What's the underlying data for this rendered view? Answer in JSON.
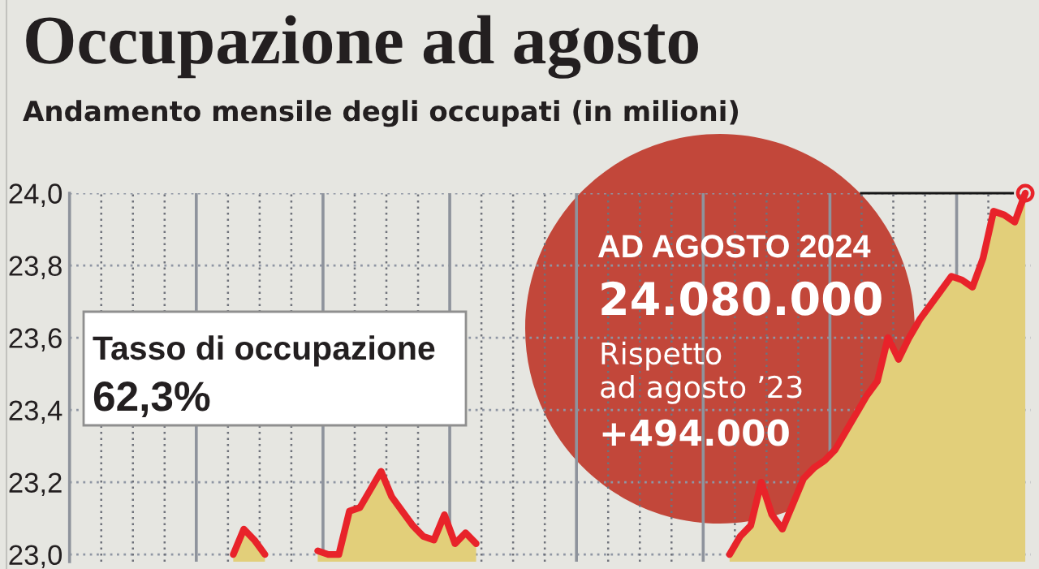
{
  "chart_data": {
    "type": "area",
    "title": "Occupazione ad agosto",
    "subtitle": "Andamento mensile degli occupati (in milioni)",
    "categories": [
      null,
      null,
      null,
      null,
      null,
      null,
      null,
      null,
      null,
      null,
      null,
      null,
      null,
      null,
      null,
      null,
      null,
      null,
      null,
      null,
      null,
      null,
      null,
      null,
      null,
      null,
      null,
      null,
      null,
      null,
      null,
      null,
      null,
      null,
      null,
      null,
      null,
      null,
      null,
      null,
      null,
      null,
      null,
      null,
      null,
      null,
      null,
      null,
      null,
      null,
      null,
      null,
      null,
      null,
      null,
      null,
      null,
      null,
      null,
      null,
      null,
      null,
      null,
      null,
      null,
      null,
      null,
      null,
      null,
      null,
      null,
      null,
      null,
      null,
      null,
      null,
      null,
      null,
      null,
      null,
      null,
      null,
      null,
      null,
      null,
      null,
      null,
      null,
      null,
      null,
      null
    ],
    "series": [
      {
        "color": "#e2cf7a",
        "values": [
          null,
          null,
          null,
          null,
          null,
          null,
          null,
          null,
          null,
          null,
          null,
          null,
          null,
          null,
          null,
          23.0,
          23.07,
          23.04,
          23.0,
          null,
          null,
          null,
          null,
          23.01,
          23.0,
          23.0,
          23.12,
          23.13,
          23.18,
          23.23,
          23.16,
          23.12,
          23.08,
          23.05,
          23.04,
          23.11,
          23.03,
          23.06,
          23.03,
          null,
          null,
          null,
          null,
          null,
          null,
          null,
          null,
          null,
          null,
          null,
          null,
          null,
          null,
          null,
          null,
          null,
          null,
          null,
          null,
          null,
          null,
          null,
          23.0,
          23.05,
          23.08,
          23.2,
          23.11,
          23.07,
          23.14,
          23.21,
          23.24,
          23.26,
          23.29,
          23.34,
          23.39,
          23.44,
          23.48,
          23.6,
          23.54,
          23.6,
          23.65,
          23.69,
          23.73,
          23.77,
          23.76,
          23.74,
          23.82,
          23.95,
          23.94,
          23.92,
          24.0
        ]
      },
      {
        "type": "scatter",
        "color": "#e8232a",
        "marker": "circle",
        "values": [
          null,
          null,
          null,
          null,
          null,
          null,
          null,
          null,
          null,
          null,
          null,
          null,
          null,
          null,
          null,
          null,
          null,
          null,
          null,
          null,
          null,
          null,
          null,
          null,
          null,
          null,
          null,
          null,
          null,
          null,
          null,
          null,
          null,
          null,
          null,
          null,
          null,
          null,
          null,
          null,
          null,
          null,
          null,
          null,
          null,
          null,
          null,
          null,
          null,
          null,
          null,
          null,
          null,
          null,
          null,
          null,
          null,
          null,
          null,
          null,
          null,
          null,
          null,
          null,
          null,
          null,
          null,
          null,
          null,
          null,
          null,
          null,
          null,
          null,
          null,
          null,
          null,
          null,
          null,
          null,
          null,
          null,
          null,
          null,
          null,
          null,
          null,
          null,
          null,
          null,
          24.0
        ]
      }
    ],
    "ylim": [
      22.98,
      24.0
    ],
    "yticks": [
      {
        "value": 23.0,
        "label": "23,0"
      },
      {
        "value": 23.2,
        "label": "23,2"
      },
      {
        "value": 23.4,
        "label": "23,4"
      },
      {
        "value": 23.6,
        "label": "23,6"
      },
      {
        "value": 23.8,
        "label": "23,8"
      },
      {
        "value": 24.0,
        "label": "24,0"
      }
    ],
    "grid": true,
    "tick_labels": "y",
    "annotations": [
      "Tasso di occupazione",
      "62,3%",
      "AD AGOSTO 2024",
      "24.080.000",
      "Rispetto\nad agosto ’23",
      "+494.000"
    ]
  }
}
